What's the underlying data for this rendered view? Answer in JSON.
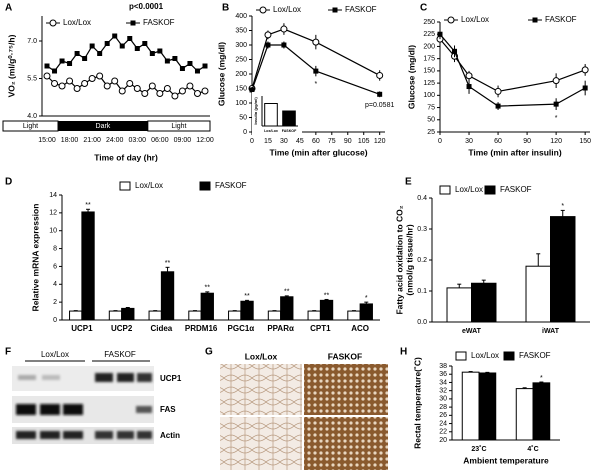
{
  "chart_data": [
    {
      "type": "line",
      "panel": "A",
      "annotation": "p<0.0001",
      "y_label": "VO₂ (ml/g⁰·⁷⁵/h)",
      "x_label": "Time of day (hr)",
      "light_dark": [
        "Light",
        "Dark",
        "Light"
      ],
      "categories": [
        "15:00",
        null,
        null,
        "18:00",
        null,
        null,
        "21:00",
        null,
        null,
        "24:00",
        null,
        null,
        "03:00",
        null,
        null,
        "06:00",
        null,
        null,
        "09:00",
        null,
        null,
        "12:00"
      ],
      "series": [
        {
          "name": "Lox/Lox",
          "color": "#000000",
          "marker": "open-circle",
          "values": [
            5.6,
            5.3,
            5.2,
            5.4,
            5.1,
            5.3,
            5.5,
            5.6,
            5.2,
            5.4,
            5.0,
            5.3,
            5.1,
            4.9,
            5.2,
            4.9,
            5.1,
            4.8,
            5.0,
            5.2,
            4.9,
            5.0
          ]
        },
        {
          "name": "FASKOF",
          "color": "#000000",
          "marker": "filled-square",
          "values": [
            6.0,
            5.8,
            6.2,
            6.1,
            6.5,
            6.3,
            6.8,
            6.5,
            6.9,
            7.2,
            6.8,
            7.1,
            6.7,
            6.9,
            6.5,
            6.6,
            6.2,
            6.3,
            5.9,
            6.1,
            5.8,
            6.0
          ]
        }
      ],
      "ylim": [
        4,
        8
      ],
      "yticks": [
        {
          "value": 4,
          "label": "4.0"
        },
        {
          "value": 5.5,
          "label": "5.5"
        },
        {
          "value": 7,
          "label": "7.0"
        }
      ]
    },
    {
      "type": "line",
      "panel": "B",
      "y_label": "Glucose (mg/dl)",
      "x_label": "Time (min after glucose)",
      "x": [
        0,
        15,
        30,
        60,
        120
      ],
      "series": [
        {
          "name": "Lox/Lox",
          "color": "#000000",
          "marker": "open-circle",
          "values": [
            150,
            335,
            355,
            310,
            195
          ],
          "errors": [
            12,
            15,
            20,
            25,
            18
          ]
        },
        {
          "name": "FASKOF",
          "color": "#000000",
          "marker": "filled-square",
          "values": [
            145,
            300,
            300,
            210,
            130
          ],
          "errors": [
            10,
            12,
            12,
            18,
            10
          ],
          "significance": [
            null,
            null,
            null,
            "*",
            "p=0.0581"
          ]
        }
      ],
      "xlim": [
        0,
        125
      ],
      "xticks": [
        0,
        15,
        30,
        45,
        60,
        75,
        90,
        105,
        120
      ],
      "ylim": [
        0,
        400
      ],
      "yticks": [
        0,
        50,
        100,
        150,
        200,
        250,
        300,
        350,
        400
      ],
      "inset": {
        "type": "bar",
        "y_label": "Insulin (pg/ml)",
        "categories": [
          "Lox/Lox",
          "FASKOF"
        ],
        "values": [
          0.75,
          0.5
        ],
        "colors": [
          "#ffffff",
          "#000000"
        ],
        "ylim": [
          0,
          1
        ]
      }
    },
    {
      "type": "line",
      "panel": "C",
      "y_label": "Glucose (mg/dl)",
      "x_label": "Time (min after insulin)",
      "x": [
        0,
        15,
        30,
        60,
        120,
        150
      ],
      "series": [
        {
          "name": "Lox/Lox",
          "color": "#000000",
          "marker": "open-circle",
          "values": [
            215,
            180,
            140,
            108,
            130,
            152
          ],
          "errors": [
            10,
            12,
            10,
            12,
            15,
            12
          ]
        },
        {
          "name": "FASKOF",
          "color": "#000000",
          "marker": "filled-square",
          "values": [
            225,
            190,
            118,
            78,
            82,
            115
          ],
          "errors": [
            10,
            12,
            15,
            8,
            12,
            15
          ],
          "significance": [
            null,
            null,
            null,
            null,
            "*",
            null
          ]
        }
      ],
      "xlim": [
        0,
        155
      ],
      "xticks": [
        0,
        30,
        60,
        90,
        120,
        150
      ],
      "ylim": [
        25,
        250
      ],
      "yticks": [
        25,
        50,
        75,
        100,
        125,
        150,
        175,
        200,
        225,
        250
      ]
    },
    {
      "type": "bar",
      "panel": "D",
      "y_label": "Relative mRNA expression",
      "categories": [
        "UCP1",
        "UCP2",
        "Cidea",
        "PRDM16",
        "PGC1α",
        "PPARα",
        "CPT1",
        "ACO"
      ],
      "series": [
        {
          "name": "Lox/Lox",
          "color": "#ffffff",
          "values": [
            1,
            1,
            1,
            1,
            1,
            1,
            1,
            1
          ],
          "errors": [
            0.05,
            0.05,
            0.05,
            0.05,
            0.05,
            0.05,
            0.05,
            0.05
          ]
        },
        {
          "name": "FASKOF",
          "color": "#000000",
          "values": [
            12.1,
            1.3,
            5.4,
            3.0,
            2.1,
            2.6,
            2.2,
            1.8
          ],
          "errors": [
            0.3,
            0.1,
            0.5,
            0.15,
            0.1,
            0.1,
            0.1,
            0.2
          ],
          "significance": [
            "**",
            null,
            "**",
            "**",
            "**",
            "**",
            "**",
            "*"
          ]
        }
      ],
      "ylim": [
        0,
        14
      ],
      "yticks": [
        0,
        2,
        4,
        6,
        8,
        10,
        12,
        14
      ]
    },
    {
      "type": "bar",
      "panel": "E",
      "y_label": [
        "Fatty acid oxidation to CO₂",
        "(nmol/g tissue/hr)"
      ],
      "categories": [
        "eWAT",
        "iWAT"
      ],
      "series": [
        {
          "name": "Lox/Lox",
          "color": "#ffffff",
          "values": [
            0.11,
            0.18
          ],
          "errors": [
            0.012,
            0.04
          ]
        },
        {
          "name": "FASKOF",
          "color": "#000000",
          "values": [
            0.125,
            0.34
          ],
          "errors": [
            0.01,
            0.02
          ],
          "significance": [
            null,
            "*"
          ]
        }
      ],
      "ylim": [
        0,
        0.4
      ],
      "yticks": [
        {
          "value": 0,
          "label": "0.0"
        },
        0.1,
        0.2,
        0.3,
        0.4
      ]
    },
    {
      "type": "bar",
      "panel": "H",
      "y_label": "Rectal temperature(˚C)",
      "x_label": "Ambient temperature",
      "categories": [
        "23˚C",
        "4˚C"
      ],
      "series": [
        {
          "name": "Lox/Lox",
          "color": "#ffffff",
          "values": [
            36.5,
            32.5
          ],
          "errors": [
            0.15,
            0.2
          ]
        },
        {
          "name": "FASKOF",
          "color": "#000000",
          "values": [
            36.3,
            33.9
          ],
          "errors": [
            0.15,
            0.2
          ],
          "significance": [
            null,
            "*"
          ]
        }
      ],
      "ylim": [
        20,
        38
      ],
      "yticks": [
        20,
        22,
        24,
        26,
        28,
        30,
        32,
        34,
        36,
        38
      ]
    }
  ],
  "blot": {
    "panel": "F",
    "groups": [
      "Lox/Lox",
      "FASKOF"
    ],
    "rows": [
      "UCP1",
      "FAS",
      "Actin"
    ]
  },
  "histology": {
    "panel": "G",
    "groups": [
      "Lox/Lox",
      "FASKOF"
    ]
  }
}
